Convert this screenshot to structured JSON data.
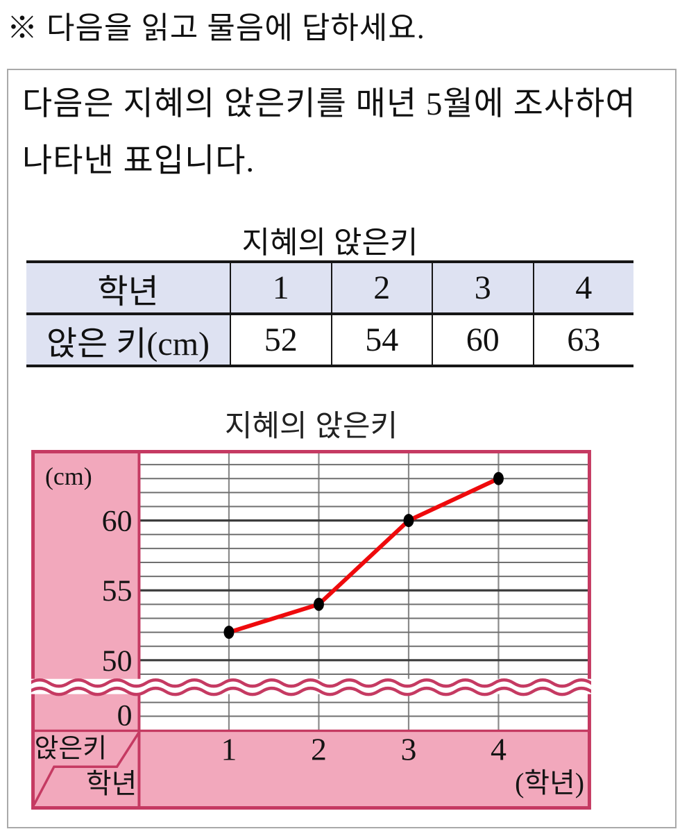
{
  "instruction": "※ 다음을 읽고 물음에 답하세요.",
  "passage": {
    "line1": "다음은 지혜의 앉은키를 매년 5월에 조사하여",
    "line2": "나타낸 표입니다."
  },
  "table": {
    "title": "지혜의 앉은키",
    "header_row": [
      "학년",
      "1",
      "2",
      "3",
      "4"
    ],
    "data_row": [
      "앉은 키(cm)",
      "52",
      "54",
      "60",
      "63"
    ],
    "header_bg": "#dee2f2"
  },
  "chart_data": {
    "type": "line",
    "title": "지혜의 앉은키",
    "unit_label": "(cm)",
    "x_axis_label": "(학년)",
    "corner_row_label": "앉은키",
    "corner_col_label": "학년",
    "categories": [
      "1",
      "2",
      "3",
      "4"
    ],
    "values": [
      52,
      54,
      60,
      63
    ],
    "y_ticks": [
      60,
      55,
      50
    ],
    "zero_label": "0",
    "ylim_visible": [
      49,
      65
    ],
    "grid": true,
    "axis_break": true,
    "line_color": "#ee0a0c",
    "point_color": "#000000",
    "band_color": "#f2a8bc",
    "frame_color": "#c53a62",
    "gridline_color": "#6f6f6f",
    "major_gridline_color": "#3c3c3c"
  }
}
